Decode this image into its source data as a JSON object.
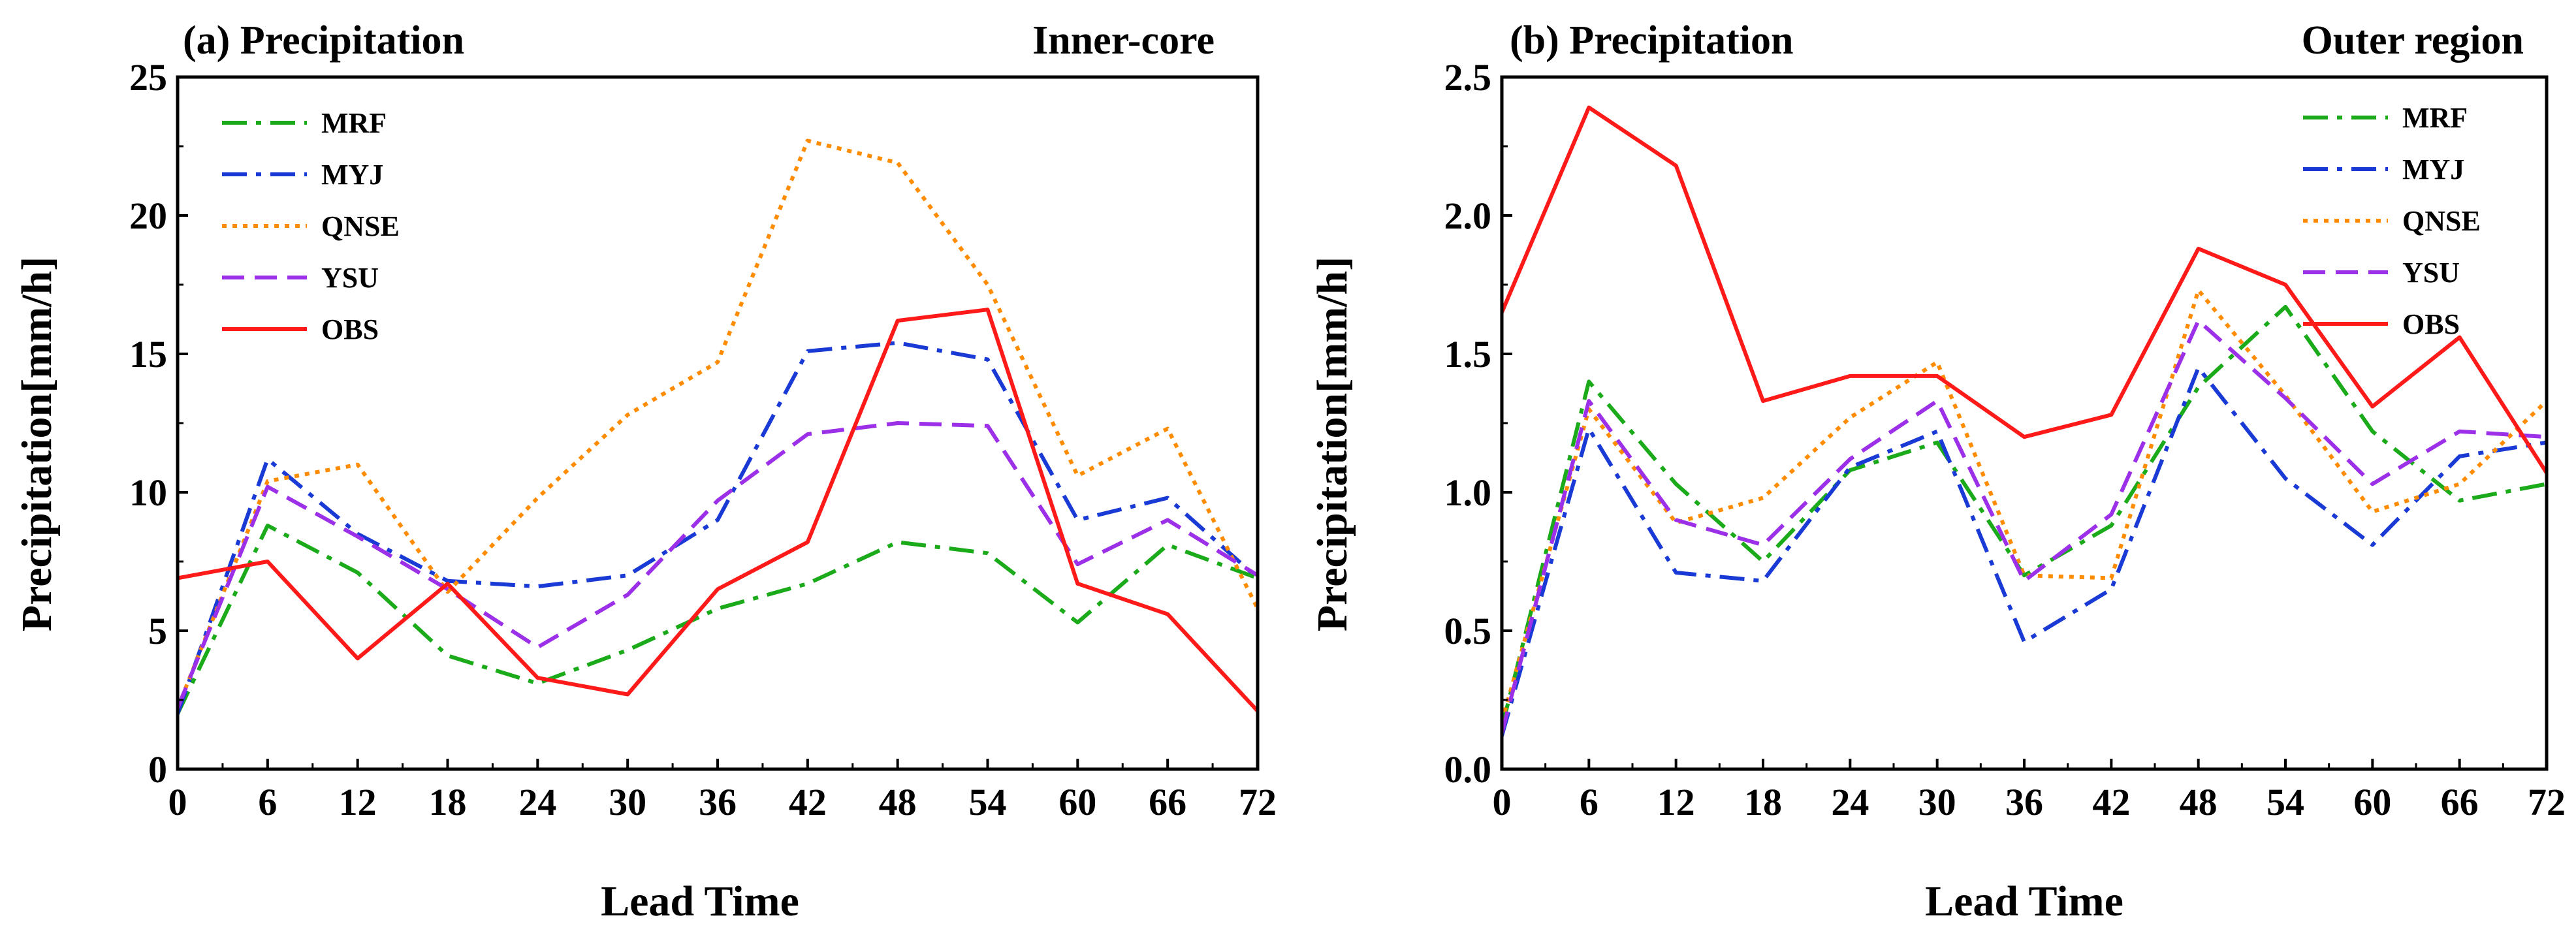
{
  "chart_data": [
    {
      "type": "line",
      "panel_label": "(a) Precipitation",
      "region": "Inner-core",
      "xlabel": "Lead Time",
      "ylabel": "Precipitation[mm/h]",
      "xlim": [
        0,
        72
      ],
      "ylim": [
        0,
        25
      ],
      "xticks": [
        "0",
        "6",
        "12",
        "18",
        "24",
        "30",
        "36",
        "42",
        "48",
        "54",
        "60",
        "66",
        "72"
      ],
      "yticks": [
        "0",
        "5",
        "10",
        "15",
        "20",
        "25"
      ],
      "legend_position": "top-left",
      "x": [
        0,
        6,
        12,
        18,
        24,
        30,
        36,
        42,
        48,
        54,
        60,
        66,
        72
      ],
      "series": [
        {
          "name": "MRF",
          "color": "#1aaa1a",
          "style": "dashdot",
          "values": [
            2.0,
            8.8,
            7.1,
            4.1,
            3.1,
            4.3,
            5.8,
            6.7,
            8.2,
            7.8,
            5.3,
            8.1,
            6.9
          ]
        },
        {
          "name": "MYJ",
          "color": "#1a3ad6",
          "style": "dashdot",
          "values": [
            2.0,
            11.2,
            8.5,
            6.8,
            6.6,
            7.0,
            9.0,
            15.1,
            15.4,
            14.8,
            9.0,
            9.8,
            6.9
          ]
        },
        {
          "name": "QNSE",
          "color": "#ff8c00",
          "style": "dotted",
          "values": [
            2.2,
            10.4,
            11.0,
            6.4,
            9.8,
            12.8,
            14.7,
            22.7,
            21.9,
            17.5,
            10.6,
            12.3,
            5.8
          ]
        },
        {
          "name": "YSU",
          "color": "#9b30e8",
          "style": "dashed",
          "values": [
            2.2,
            10.2,
            8.4,
            6.5,
            4.4,
            6.3,
            9.7,
            12.1,
            12.5,
            12.4,
            7.4,
            9.0,
            7.0
          ]
        },
        {
          "name": "OBS",
          "color": "#ff1a1a",
          "style": "solid",
          "values": [
            6.9,
            7.5,
            4.0,
            6.7,
            3.3,
            2.7,
            6.5,
            8.2,
            16.2,
            16.6,
            6.7,
            5.6,
            2.1
          ]
        }
      ]
    },
    {
      "type": "line",
      "panel_label": "(b) Precipitation",
      "region": "Outer region",
      "xlabel": "Lead Time",
      "ylabel": "Precipitation[mm/h]",
      "xlim": [
        0,
        72
      ],
      "ylim": [
        0,
        2.5
      ],
      "xticks": [
        "0",
        "6",
        "12",
        "18",
        "24",
        "30",
        "36",
        "42",
        "48",
        "54",
        "60",
        "66",
        "72"
      ],
      "yticks": [
        "0.0",
        "0.5",
        "1.0",
        "1.5",
        "2.0",
        "2.5"
      ],
      "legend_position": "top-right",
      "x": [
        0,
        6,
        12,
        18,
        24,
        30,
        36,
        42,
        48,
        54,
        60,
        66,
        72
      ],
      "series": [
        {
          "name": "MRF",
          "color": "#1aaa1a",
          "style": "dashdot",
          "values": [
            0.15,
            1.4,
            1.03,
            0.75,
            1.08,
            1.18,
            0.7,
            0.88,
            1.38,
            1.67,
            1.22,
            0.97,
            1.03
          ]
        },
        {
          "name": "MYJ",
          "color": "#1a3ad6",
          "style": "dashdot",
          "values": [
            0.12,
            1.23,
            0.71,
            0.68,
            1.09,
            1.22,
            0.46,
            0.65,
            1.45,
            1.05,
            0.81,
            1.13,
            1.18
          ]
        },
        {
          "name": "QNSE",
          "color": "#ff8c00",
          "style": "dotted",
          "values": [
            0.17,
            1.3,
            0.89,
            0.98,
            1.27,
            1.47,
            0.7,
            0.69,
            1.73,
            1.35,
            0.93,
            1.03,
            1.33
          ]
        },
        {
          "name": "YSU",
          "color": "#9b30e8",
          "style": "dashed",
          "values": [
            0.13,
            1.33,
            0.9,
            0.81,
            1.12,
            1.33,
            0.68,
            0.92,
            1.62,
            1.34,
            1.03,
            1.22,
            1.2
          ]
        },
        {
          "name": "OBS",
          "color": "#ff1a1a",
          "style": "solid",
          "values": [
            1.65,
            2.39,
            2.18,
            1.33,
            1.42,
            1.42,
            1.2,
            1.28,
            1.88,
            1.75,
            1.31,
            1.56,
            1.07
          ]
        }
      ]
    }
  ]
}
